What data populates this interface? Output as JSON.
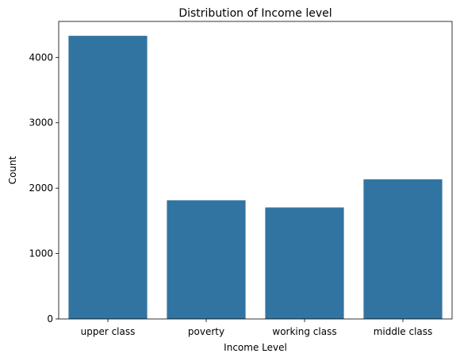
{
  "chart_data": {
    "type": "bar",
    "title": "Distribution of Income level",
    "xlabel": "Income Level",
    "ylabel": "Count",
    "categories": [
      "upper class",
      "poverty",
      "working class",
      "middle class"
    ],
    "values": [
      4330,
      1815,
      1705,
      2135
    ],
    "ylim": [
      0,
      4550
    ],
    "yticks": [
      0,
      1000,
      2000,
      3000,
      4000
    ],
    "grid": false,
    "bar_color": "#3274a1"
  }
}
